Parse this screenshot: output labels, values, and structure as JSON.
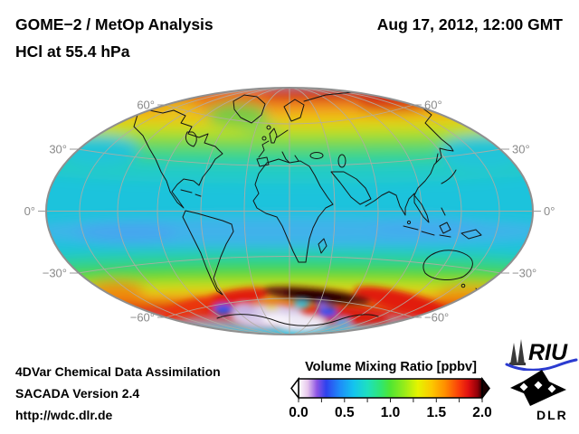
{
  "header": {
    "title_line1": "GOME−2 / MetOp Analysis",
    "title_line2": "HCl at 55.4 hPa",
    "datetime": "Aug 17, 2012, 12:00 GMT"
  },
  "map": {
    "lat_labels_left": [
      "60°",
      "30°",
      "0°",
      "−30°",
      "−60°"
    ],
    "lat_labels_right": [
      "60°",
      "30°",
      "0°",
      "−30°",
      "−60°"
    ]
  },
  "colorbar": {
    "title": "Volume Mixing Ratio [ppbv]",
    "tick_labels": [
      "0.0",
      "0.5",
      "1.0",
      "1.5",
      "2.0"
    ],
    "range": [
      0.0,
      2.0
    ],
    "stops": [
      {
        "v": 0.0,
        "c": "#ffffff"
      },
      {
        "v": 0.1,
        "c": "#e6c6ec"
      },
      {
        "v": 0.2,
        "c": "#8c54e4"
      },
      {
        "v": 0.3,
        "c": "#2e42ee"
      },
      {
        "v": 0.45,
        "c": "#1e8cf8"
      },
      {
        "v": 0.6,
        "c": "#14c4ee"
      },
      {
        "v": 0.75,
        "c": "#1ee0c0"
      },
      {
        "v": 0.9,
        "c": "#30e670"
      },
      {
        "v": 1.0,
        "c": "#50e632"
      },
      {
        "v": 1.15,
        "c": "#96ec1a"
      },
      {
        "v": 1.3,
        "c": "#e6f400"
      },
      {
        "v": 1.45,
        "c": "#fcc800"
      },
      {
        "v": 1.6,
        "c": "#ff8c00"
      },
      {
        "v": 1.75,
        "c": "#fa3c0a"
      },
      {
        "v": 1.85,
        "c": "#e01010"
      },
      {
        "v": 1.95,
        "c": "#900008"
      },
      {
        "v": 2.0,
        "c": "#2a0000"
      }
    ]
  },
  "footer": {
    "line1": "4DVar Chemical Data Assimilation",
    "line2": "SACADA Version 2.4",
    "line3": "http://wdc.dlr.de"
  },
  "logos": {
    "riu": "RIU",
    "dlr": "DLR"
  }
}
